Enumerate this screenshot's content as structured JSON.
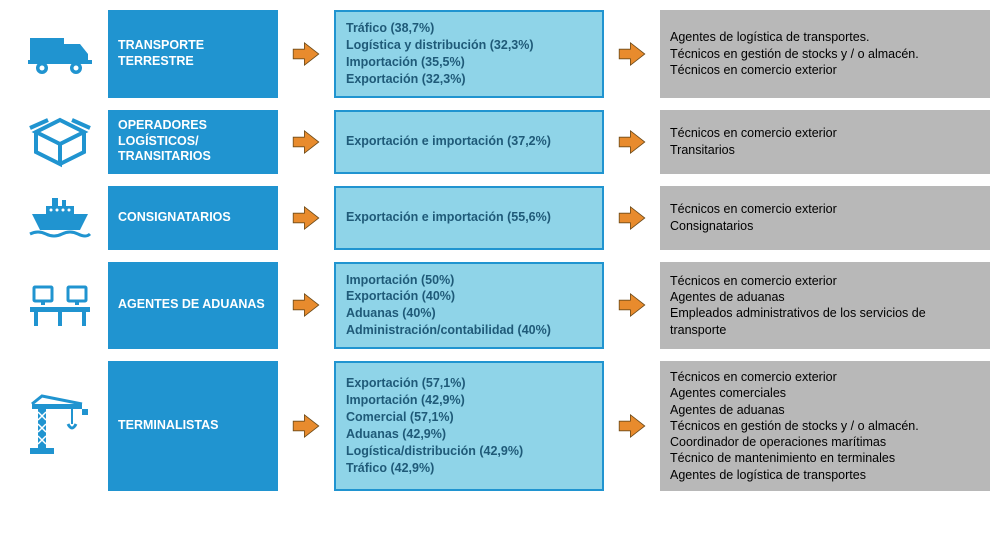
{
  "colors": {
    "icon": "#2094d0",
    "sector_bg": "#2094d0",
    "arrow_fill": "#e88b2d",
    "arrow_stroke": "#6b4a1a",
    "metrics_bg": "#8fd4e8",
    "metrics_border": "#2094d0",
    "metrics_text": "#1f5a78",
    "roles_bg": "#b8b8b8"
  },
  "rows": [
    {
      "icon": "truck",
      "sector": "TRANSPORTE TERRESTRE",
      "metrics": [
        "Tráfico (38,7%)",
        "Logística y distribución (32,3%)",
        "Importación (35,5%)",
        "Exportación (32,3%)"
      ],
      "roles": [
        "Agentes de logística de transportes.",
        "Técnicos en gestión de stocks y / o almacén.",
        "Técnicos en comercio exterior"
      ]
    },
    {
      "icon": "box",
      "sector": "OPERADORES LOGÍSTICOS/ TRANSITARIOS",
      "metrics": [
        "Exportación e importación (37,2%)"
      ],
      "roles": [
        "Técnicos en comercio exterior",
        "Transitarios"
      ]
    },
    {
      "icon": "ship",
      "sector": "CONSIGNATARIOS",
      "metrics": [
        "Exportación e importación (55,6%)"
      ],
      "roles": [
        "Técnicos en comercio exterior",
        "Consignatarios"
      ]
    },
    {
      "icon": "desks",
      "sector": "AGENTES DE ADUANAS",
      "metrics": [
        "Importación (50%)",
        "Exportación (40%)",
        "Aduanas (40%)",
        "Administración/contabilidad (40%)"
      ],
      "roles": [
        "Técnicos en comercio exterior",
        "Agentes de aduanas",
        "Empleados administrativos de los servicios de transporte"
      ]
    },
    {
      "icon": "crane",
      "sector": "TERMINALISTAS",
      "metrics": [
        "Exportación (57,1%)",
        "Importación (42,9%)",
        "Comercial (57,1%)",
        "Aduanas (42,9%)",
        "Logística/distribución (42,9%)",
        "Tráfico (42,9%)"
      ],
      "roles": [
        "Técnicos en comercio exterior",
        "Agentes comerciales",
        "Agentes de aduanas",
        "Técnicos en gestión de stocks y / o almacén.",
        "Coordinador de operaciones marítimas",
        "Técnico de mantenimiento en terminales",
        "Agentes de logística de transportes"
      ]
    }
  ]
}
